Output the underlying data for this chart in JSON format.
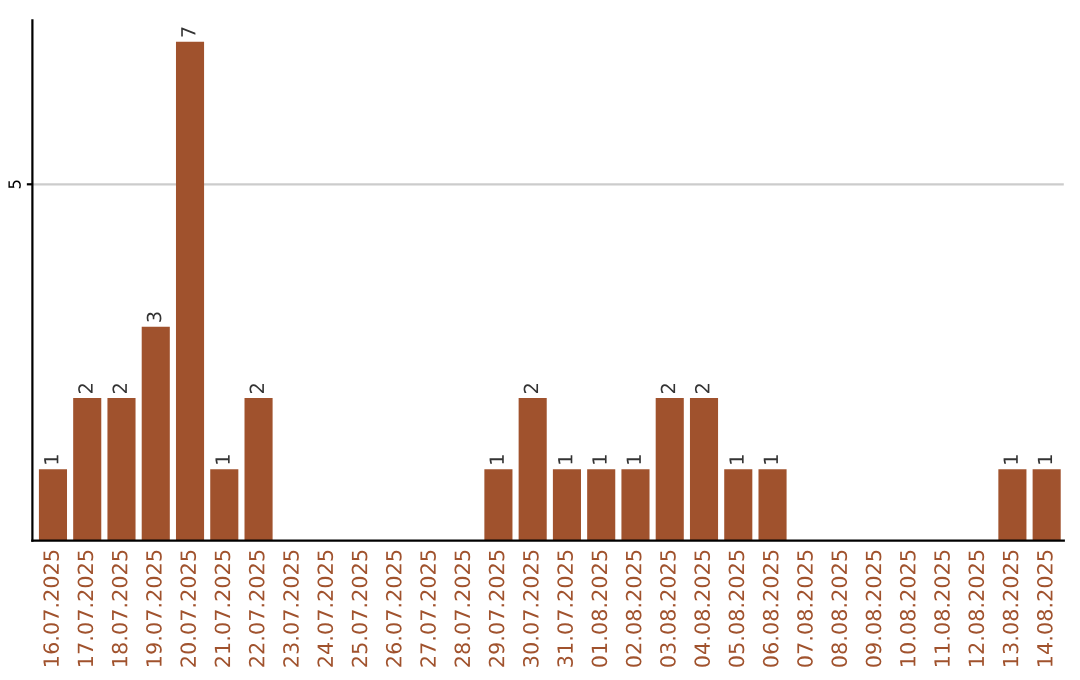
{
  "chart_data": {
    "type": "bar",
    "categories": [
      "16.07.2025",
      "17.07.2025",
      "18.07.2025",
      "19.07.2025",
      "20.07.2025",
      "21.07.2025",
      "22.07.2025",
      "23.07.2025",
      "24.07.2025",
      "25.07.2025",
      "26.07.2025",
      "27.07.2025",
      "28.07.2025",
      "29.07.2025",
      "30.07.2025",
      "31.07.2025",
      "01.08.2025",
      "02.08.2025",
      "03.08.2025",
      "04.08.2025",
      "05.08.2025",
      "06.08.2025",
      "07.08.2025",
      "08.08.2025",
      "09.08.2025",
      "10.08.2025",
      "11.08.2025",
      "12.08.2025",
      "13.08.2025",
      "14.08.2025"
    ],
    "values": [
      1,
      2,
      2,
      3,
      7,
      1,
      2,
      0,
      0,
      0,
      0,
      0,
      0,
      1,
      2,
      1,
      1,
      1,
      2,
      2,
      1,
      1,
      0,
      0,
      0,
      0,
      0,
      0,
      1,
      1
    ],
    "value_labels": [
      "1",
      "2",
      "2",
      "3",
      "7",
      "1",
      "2",
      null,
      null,
      null,
      null,
      null,
      null,
      "1",
      "2",
      "1",
      "1",
      "1",
      "2",
      "2",
      "1",
      "1",
      null,
      null,
      null,
      null,
      null,
      null,
      "1",
      "1"
    ],
    "color": "#a0522d",
    "ylim": [
      0,
      7.3
    ],
    "yticks": [
      5
    ],
    "grid": "y"
  }
}
